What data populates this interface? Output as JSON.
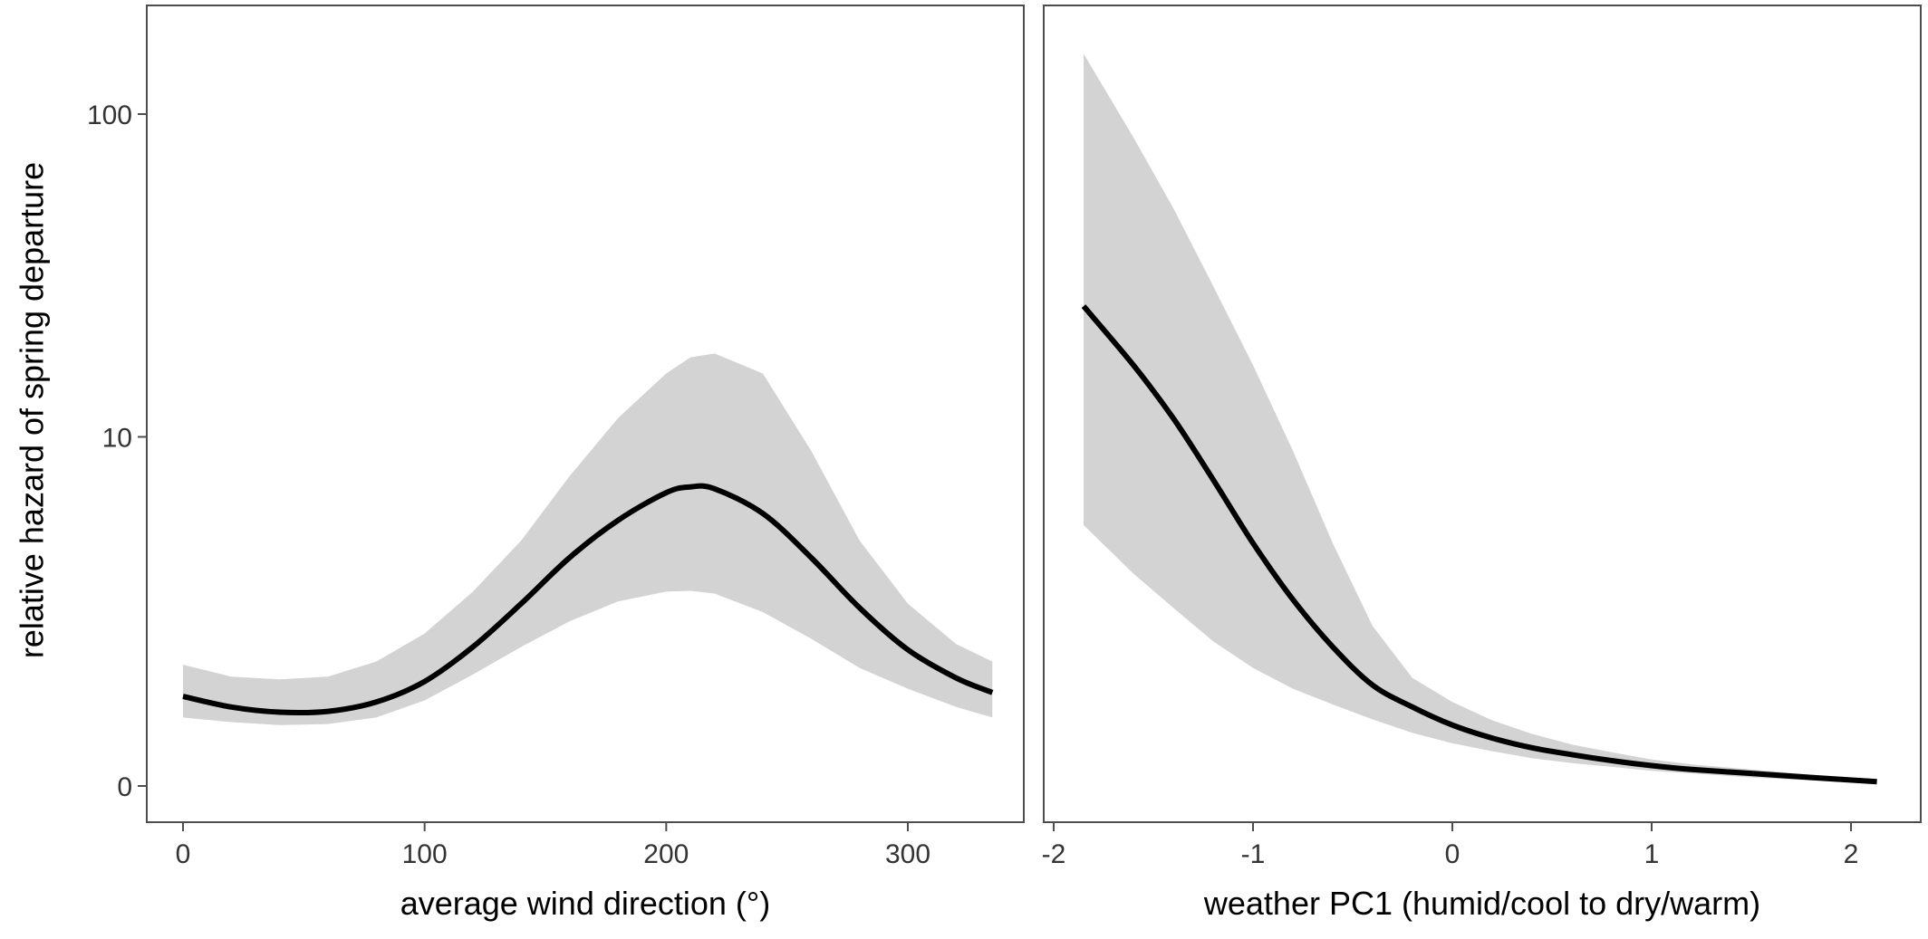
{
  "ylabel": "relative hazard of spring departure",
  "colors": {
    "band": "#d3d3d3",
    "line": "#000000",
    "frame": "#4d4d4d",
    "tick_text": "#333333"
  },
  "chart_data": [
    {
      "type": "line",
      "title": "",
      "xlabel": "average wind direction (°)",
      "ylabel": "relative hazard of spring departure",
      "y_scale": "pseudo-log",
      "xlim": [
        -15,
        348
      ],
      "x_ticks": [
        0,
        100,
        200,
        300
      ],
      "x_tick_labels": [
        "0",
        "100",
        "200",
        "300"
      ],
      "y_ticks": [
        0,
        10,
        100
      ],
      "y_tick_labels": [
        "0",
        "10",
        "100"
      ],
      "grid": false,
      "series": [
        {
          "x": [
            0,
            20,
            40,
            60,
            80,
            100,
            120,
            140,
            160,
            180,
            200,
            210,
            220,
            240,
            260,
            280,
            300,
            320,
            335
          ],
          "y": [
            0.85,
            0.72,
            0.66,
            0.67,
            0.78,
            1.05,
            1.6,
            2.5,
            3.8,
            5.2,
            6.5,
            6.8,
            6.7,
            5.5,
            3.8,
            2.4,
            1.55,
            1.1,
            0.9
          ],
          "lower": [
            0.6,
            0.55,
            0.52,
            0.53,
            0.6,
            0.8,
            1.15,
            1.6,
            2.1,
            2.55,
            2.8,
            2.82,
            2.75,
            2.3,
            1.75,
            1.25,
            0.95,
            0.72,
            0.6
          ],
          "upper": [
            1.3,
            1.12,
            1.08,
            1.12,
            1.35,
            1.85,
            2.8,
            4.4,
            7.4,
            11.5,
            16.0,
            18.0,
            18.5,
            16.0,
            9.0,
            4.4,
            2.5,
            1.65,
            1.35
          ]
        }
      ]
    },
    {
      "type": "line",
      "title": "",
      "xlabel": "weather PC1 (humid/cool to dry/warm)",
      "ylabel": "",
      "y_scale": "pseudo-log",
      "xlim": [
        -2.05,
        2.35
      ],
      "x_ticks": [
        -2,
        -1,
        0,
        1,
        2
      ],
      "x_tick_labels": [
        "-2",
        "-1",
        "0",
        "1",
        "2"
      ],
      "y_ticks": [
        0,
        10,
        100
      ],
      "grid": false,
      "series": [
        {
          "x": [
            -1.85,
            -1.6,
            -1.4,
            -1.2,
            -1.0,
            -0.8,
            -0.6,
            -0.4,
            -0.2,
            0.0,
            0.2,
            0.4,
            0.6,
            0.8,
            1.0,
            1.2,
            1.5,
            1.8,
            2.13
          ],
          "y": [
            26,
            17,
            11.5,
            7.2,
            4.3,
            2.6,
            1.6,
            1.0,
            0.72,
            0.52,
            0.39,
            0.3,
            0.24,
            0.19,
            0.15,
            0.12,
            0.09,
            0.06,
            0.03
          ],
          "lower": [
            5.0,
            3.3,
            2.4,
            1.7,
            1.25,
            0.95,
            0.75,
            0.58,
            0.44,
            0.34,
            0.27,
            0.21,
            0.17,
            0.14,
            0.11,
            0.09,
            0.06,
            0.04,
            0.02
          ],
          "upper": [
            152,
            85,
            52,
            30,
            17,
            9.0,
            4.3,
            2.0,
            1.1,
            0.78,
            0.57,
            0.43,
            0.33,
            0.26,
            0.2,
            0.16,
            0.12,
            0.08,
            0.05
          ]
        }
      ]
    }
  ]
}
